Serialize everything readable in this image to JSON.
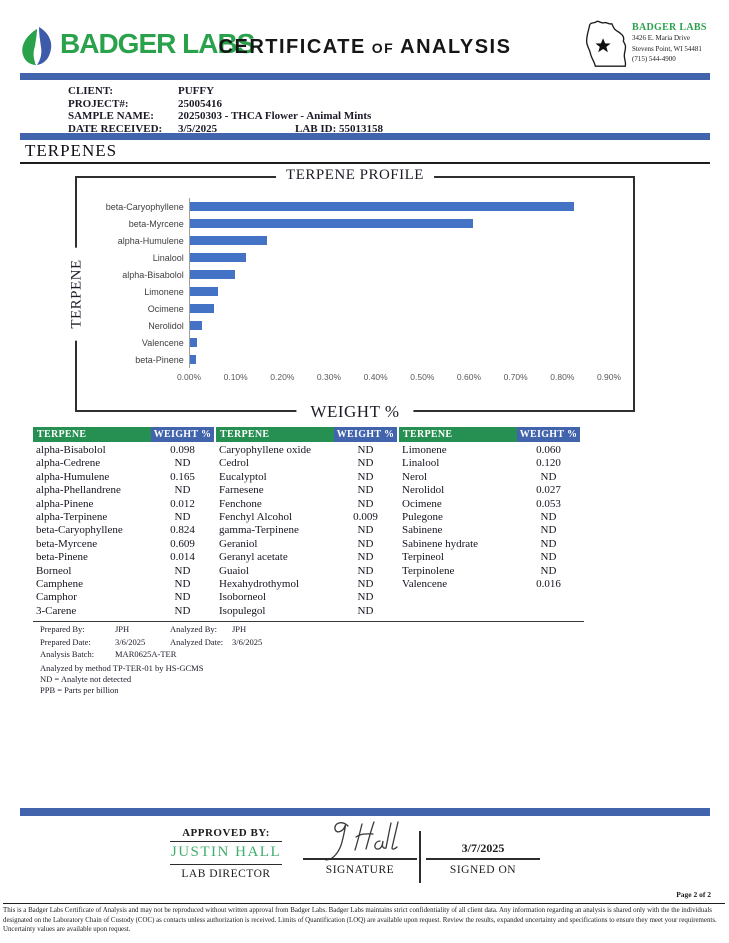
{
  "colors": {
    "band_blue": "#4264ad",
    "bar_blue": "#4472c4",
    "table_green": "#259051",
    "table_blue": "#4264ad",
    "logo_green": "#2aa24c",
    "approver_green": "#3fae6a"
  },
  "header": {
    "logo_text": "BADGER LABS",
    "title": "CERTIFICATE OF ANALYSIS",
    "title_parts": {
      "a": "CERTIFICATE",
      "of": "OF",
      "b": "ANALYSIS"
    },
    "lab_block": {
      "name": "BADGER LABS",
      "address1": "3426 E. Maria Drive",
      "address2": "Stevens Point, WI 54481",
      "phone": "(715) 544-4900"
    }
  },
  "client_info": {
    "client_label": "CLIENT:",
    "client": "PUFFY",
    "project_label": "PROJECT#:",
    "project": "25005416",
    "sample_label": "SAMPLE NAME:",
    "sample": "20250303 - THCA Flower - Animal Mints",
    "date_label": "DATE RECEIVED:",
    "date": "3/5/2025",
    "lab_id_label": "LAB ID:",
    "lab_id": "55013158"
  },
  "section_title": "TERPENES",
  "chart_data": {
    "type": "bar",
    "orientation": "horizontal",
    "title": "TERPENE PROFILE",
    "xlabel": "WEIGHT %",
    "ylabel": "TERPENE",
    "categories": [
      "beta-Caryophyllene",
      "beta-Myrcene",
      "alpha-Humulene",
      "Linalool",
      "alpha-Bisabolol",
      "Limonene",
      "Ocimene",
      "Nerolidol",
      "Valencene",
      "beta-Pinene"
    ],
    "values": [
      0.824,
      0.609,
      0.165,
      0.12,
      0.098,
      0.06,
      0.053,
      0.027,
      0.016,
      0.014
    ],
    "xlim": [
      0,
      0.9
    ],
    "x_ticks": [
      "0.00%",
      "0.10%",
      "0.20%",
      "0.30%",
      "0.40%",
      "0.50%",
      "0.60%",
      "0.70%",
      "0.80%",
      "0.90%"
    ],
    "grid": false,
    "legend": "none",
    "bar_color": "#4472c4"
  },
  "table": {
    "header_terpene": "TERPENE",
    "header_weight": "WEIGHT %",
    "columns": [
      [
        [
          "alpha-Bisabolol",
          "0.098"
        ],
        [
          "alpha-Cedrene",
          "ND"
        ],
        [
          "alpha-Humulene",
          "0.165"
        ],
        [
          "alpha-Phellandrene",
          "ND"
        ],
        [
          "alpha-Pinene",
          "0.012"
        ],
        [
          "alpha-Terpinene",
          "ND"
        ],
        [
          "beta-Caryophyllene",
          "0.824"
        ],
        [
          "beta-Myrcene",
          "0.609"
        ],
        [
          "beta-Pinene",
          "0.014"
        ],
        [
          "Borneol",
          "ND"
        ],
        [
          "Camphene",
          "ND"
        ],
        [
          "Camphor",
          "ND"
        ],
        [
          "3-Carene",
          "ND"
        ]
      ],
      [
        [
          "Caryophyllene oxide",
          "ND"
        ],
        [
          "Cedrol",
          "ND"
        ],
        [
          "Eucalyptol",
          "ND"
        ],
        [
          "Farnesene",
          "ND"
        ],
        [
          "Fenchone",
          "ND"
        ],
        [
          "Fenchyl Alcohol",
          "0.009"
        ],
        [
          "gamma-Terpinene",
          "ND"
        ],
        [
          "Geraniol",
          "ND"
        ],
        [
          "Geranyl acetate",
          "ND"
        ],
        [
          "Guaiol",
          "ND"
        ],
        [
          "Hexahydrothymol",
          "ND"
        ],
        [
          "Isoborneol",
          "ND"
        ],
        [
          "Isopulegol",
          "ND"
        ]
      ],
      [
        [
          "Limonene",
          "0.060"
        ],
        [
          "Linalool",
          "0.120"
        ],
        [
          "Nerol",
          "ND"
        ],
        [
          "Nerolidol",
          "0.027"
        ],
        [
          "Ocimene",
          "0.053"
        ],
        [
          "Pulegone",
          "ND"
        ],
        [
          "Sabinene",
          "ND"
        ],
        [
          "Sabinene hydrate",
          "ND"
        ],
        [
          "Terpineol",
          "ND"
        ],
        [
          "Terpinolene",
          "ND"
        ],
        [
          "Valencene",
          "0.016"
        ],
        [
          "",
          ""
        ],
        [
          "",
          ""
        ]
      ]
    ]
  },
  "prep": {
    "prepared_by_label": "Prepared By:",
    "prepared_by": "JPH",
    "analyzed_by_label": "Analyzed By:",
    "analyzed_by": "JPH",
    "prepared_date_label": "Prepared Date:",
    "prepared_date": "3/6/2025",
    "analyzed_date_label": "Analyzed Date:",
    "analyzed_date": "3/6/2025",
    "batch_label": "Analysis Batch:",
    "batch": "MAR0625A-TER",
    "method_note": "Analyzed by method TP-TER-01 by HS-GCMS",
    "nd_note": "ND = Analyte not detected",
    "ppb_note": "PPB = Parts per billion"
  },
  "approval": {
    "approved_by_label": "APPROVED BY:",
    "approver": "JUSTIN HALL",
    "approver_title": "LAB DIRECTOR",
    "signature_label": "SIGNATURE",
    "signed_on_label": "SIGNED ON",
    "signed_date": "3/7/2025"
  },
  "footer": {
    "page": "Page 2 of 2",
    "disclaimer": "This is a Badger Labs Certificate of Analysis and may not be reproduced without written approval from Badger Labs. Badger Labs maintains strict confidentiality of all client data. Any information regarding an analysis is shared only with the the individuals designated on the Laboratory Chain of Custody (COC) as contacts unless authorization is received. Limits of Quantification (LOQ) are available upon request. Review the results, expanded uncertainty and specifications to ensure they meet your requirements. Uncertainty values are available upon request."
  }
}
